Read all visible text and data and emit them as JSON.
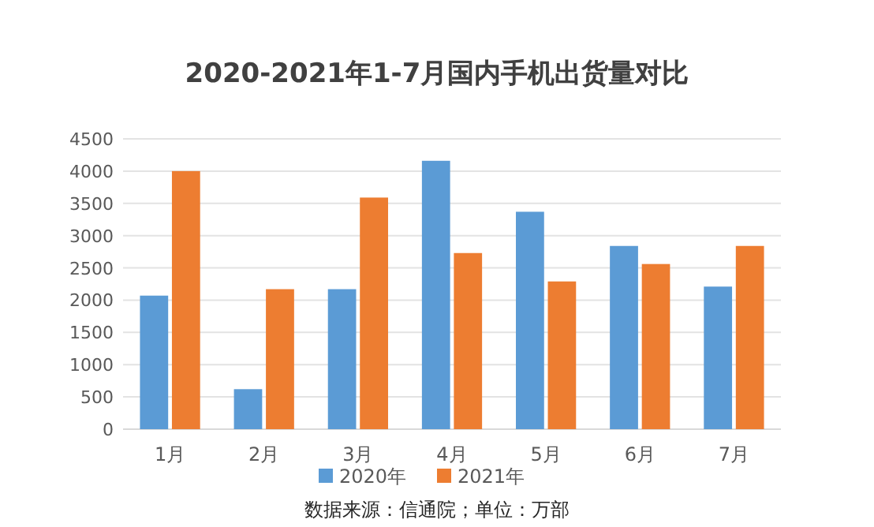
{
  "chart_data": {
    "type": "bar",
    "title": "2020-2021年1-7月国内手机出货量对比",
    "categories": [
      "1月",
      "2月",
      "3月",
      "4月",
      "5月",
      "6月",
      "7月"
    ],
    "series": [
      {
        "name": "2020年",
        "color": "#5b9bd5",
        "values": [
          2070,
          620,
          2170,
          4160,
          3370,
          2840,
          2210
        ]
      },
      {
        "name": "2021年",
        "color": "#ed7d31",
        "values": [
          4000,
          2170,
          3590,
          2730,
          2290,
          2560,
          2840
        ]
      }
    ],
    "ylim": [
      0,
      4500
    ],
    "yticks": [
      0,
      500,
      1000,
      1500,
      2000,
      2500,
      3000,
      3500,
      4000,
      4500
    ],
    "grid": "y",
    "legend": "bottom",
    "annotations": [
      "数据来源：信通院；单位：万部"
    ]
  }
}
